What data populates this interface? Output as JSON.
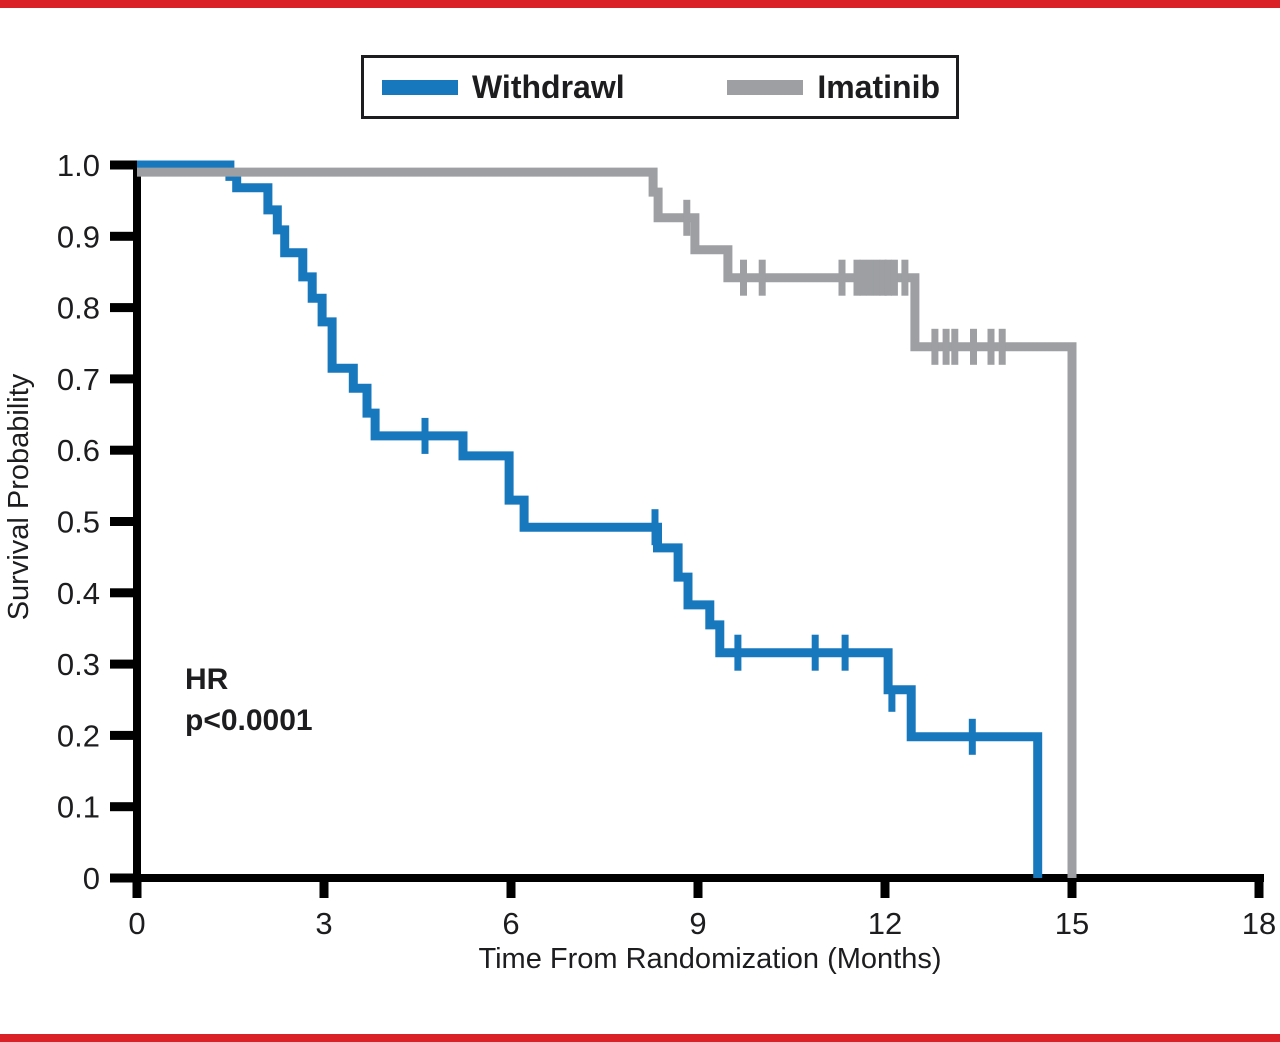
{
  "page": {
    "top_rule_color": "#da2128",
    "bottom_rule_color": "#da2128",
    "background": "#ffffff",
    "axis_color": "#000000",
    "text_color": "#1d1d1f"
  },
  "legend": {
    "entries": [
      {
        "label": "Withdrawl",
        "color": "#1878be"
      },
      {
        "label": "Imatinib",
        "color": "#9d9fa2"
      }
    ]
  },
  "annotation": {
    "line1": "HR",
    "line2": "p<0.0001"
  },
  "chart_data": {
    "type": "line",
    "subtype": "kaplan-meier-step-survival",
    "title": "",
    "xlabel": "Time From Randomization (Months)",
    "ylabel": "Survival Probability",
    "xlim": [
      0,
      18
    ],
    "ylim": [
      0,
      1.0
    ],
    "xticks": [
      "0",
      "3",
      "6",
      "9",
      "12",
      "15",
      "18"
    ],
    "yticks": [
      "1.0",
      "0.9",
      "0.8",
      "0.7",
      "0.6",
      "0.5",
      "0.4",
      "0.3",
      "0.2",
      "0.1",
      "0"
    ],
    "grid": false,
    "legend_position": "top-center",
    "series": [
      {
        "name": "Withdrawl",
        "color": "#1878be",
        "start": 1.0,
        "steps": [
          [
            1.49,
            0.984
          ],
          [
            1.6,
            0.968
          ],
          [
            2.1,
            0.937
          ],
          [
            2.25,
            0.909
          ],
          [
            2.37,
            0.877
          ],
          [
            2.66,
            0.843
          ],
          [
            2.81,
            0.813
          ],
          [
            2.97,
            0.78
          ],
          [
            3.13,
            0.715
          ],
          [
            3.47,
            0.687
          ],
          [
            3.69,
            0.652
          ],
          [
            3.82,
            0.62
          ],
          [
            5.23,
            0.592
          ],
          [
            5.97,
            0.53
          ],
          [
            6.21,
            0.492
          ],
          [
            8.35,
            0.463
          ],
          [
            8.68,
            0.422
          ],
          [
            8.84,
            0.383
          ],
          [
            9.19,
            0.355
          ],
          [
            9.35,
            0.316
          ],
          [
            12.05,
            0.264
          ],
          [
            12.42,
            0.198
          ],
          [
            14.45,
            0.0
          ]
        ],
        "censors": [
          [
            4.62,
            0.62
          ],
          [
            8.31,
            0.492
          ],
          [
            9.64,
            0.316
          ],
          [
            10.88,
            0.316
          ],
          [
            11.36,
            0.316
          ],
          [
            13.4,
            0.198
          ]
        ],
        "censors_down": [
          [
            12.11,
            0.264
          ]
        ]
      },
      {
        "name": "Imatinib",
        "color": "#9d9fa2",
        "start": 0.99,
        "steps": [
          [
            8.28,
            0.962
          ],
          [
            8.36,
            0.926
          ],
          [
            8.95,
            0.881
          ],
          [
            9.48,
            0.842
          ],
          [
            12.48,
            0.745
          ],
          [
            15.0,
            0.0
          ]
        ],
        "censors": [
          [
            8.82,
            0.926
          ],
          [
            9.73,
            0.842
          ],
          [
            10.03,
            0.842
          ],
          [
            11.31,
            0.842
          ],
          [
            11.55,
            0.842
          ],
          [
            11.65,
            0.842
          ],
          [
            11.76,
            0.842
          ],
          [
            11.87,
            0.842
          ],
          [
            11.97,
            0.842
          ],
          [
            12.05,
            0.842
          ],
          [
            12.15,
            0.842
          ],
          [
            12.32,
            0.842
          ],
          [
            12.8,
            0.745
          ],
          [
            12.98,
            0.745
          ],
          [
            13.12,
            0.745
          ],
          [
            13.42,
            0.745
          ],
          [
            13.7,
            0.745
          ],
          [
            13.88,
            0.745
          ]
        ],
        "censors_down": []
      }
    ]
  }
}
